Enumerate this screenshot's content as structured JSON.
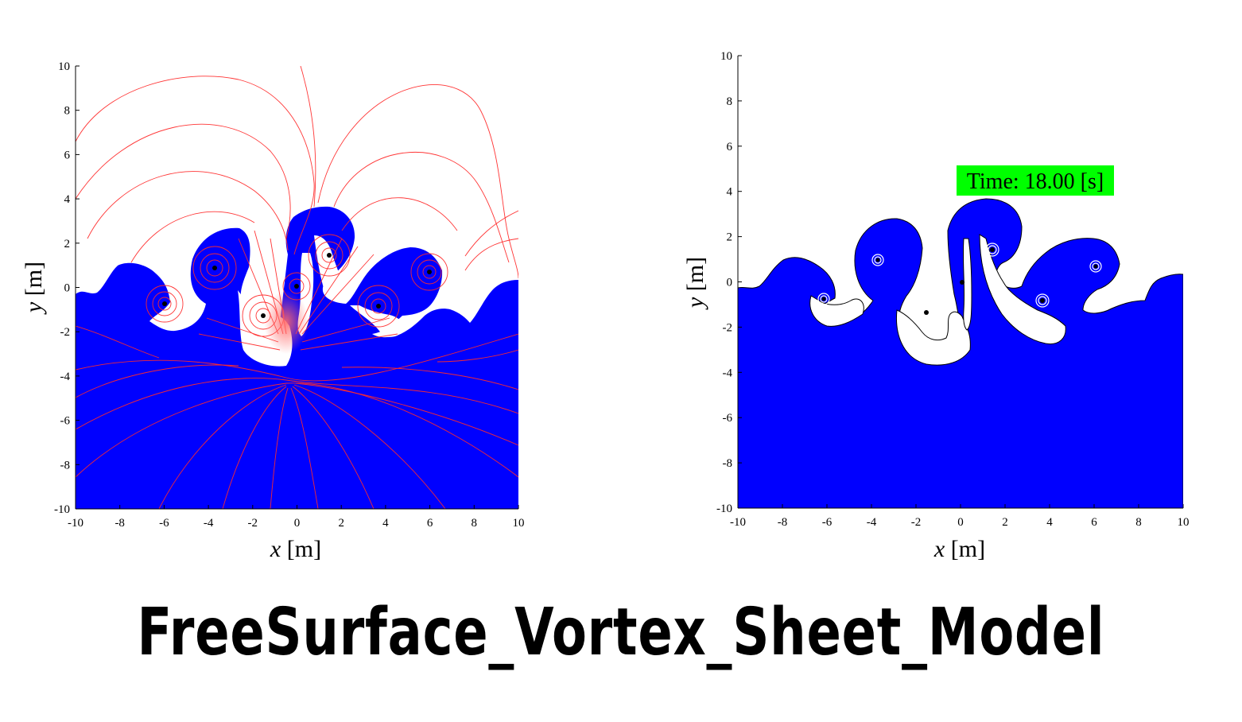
{
  "title": "FreeSurface_Vortex_Sheet_Model",
  "colors": {
    "fluid": "#0000ff",
    "streamlines": "#ff2a2a",
    "time_badge": "#00ff00",
    "surface_line": "#000000"
  },
  "chart_data": [
    {
      "type": "area",
      "panel": "left",
      "description_overlay": "streamlines",
      "xlabel": {
        "var": "x",
        "unit": " [m]"
      },
      "ylabel": {
        "var": "y",
        "unit": " [m]"
      },
      "xlim": [
        -10,
        10
      ],
      "ylim": [
        -10,
        10
      ],
      "xticks": [
        -10,
        -8,
        -6,
        -4,
        -2,
        0,
        2,
        4,
        6,
        8,
        10
      ],
      "yticks": [
        -10,
        -8,
        -6,
        -4,
        -2,
        0,
        2,
        4,
        6,
        8,
        10
      ],
      "grid": false
    },
    {
      "type": "area",
      "panel": "right",
      "xlabel": {
        "var": "x",
        "unit": " [m]"
      },
      "ylabel": {
        "var": "y",
        "unit": " [m]"
      },
      "xlim": [
        -10,
        10
      ],
      "ylim": [
        -10,
        10
      ],
      "xticks": [
        -10,
        -8,
        -6,
        -4,
        -2,
        0,
        2,
        4,
        6,
        8,
        10
      ],
      "yticks": [
        -10,
        -8,
        -6,
        -4,
        -2,
        0,
        2,
        4,
        6,
        8,
        10
      ],
      "grid": false,
      "annotation": "Time: 18.00 [s]"
    }
  ]
}
